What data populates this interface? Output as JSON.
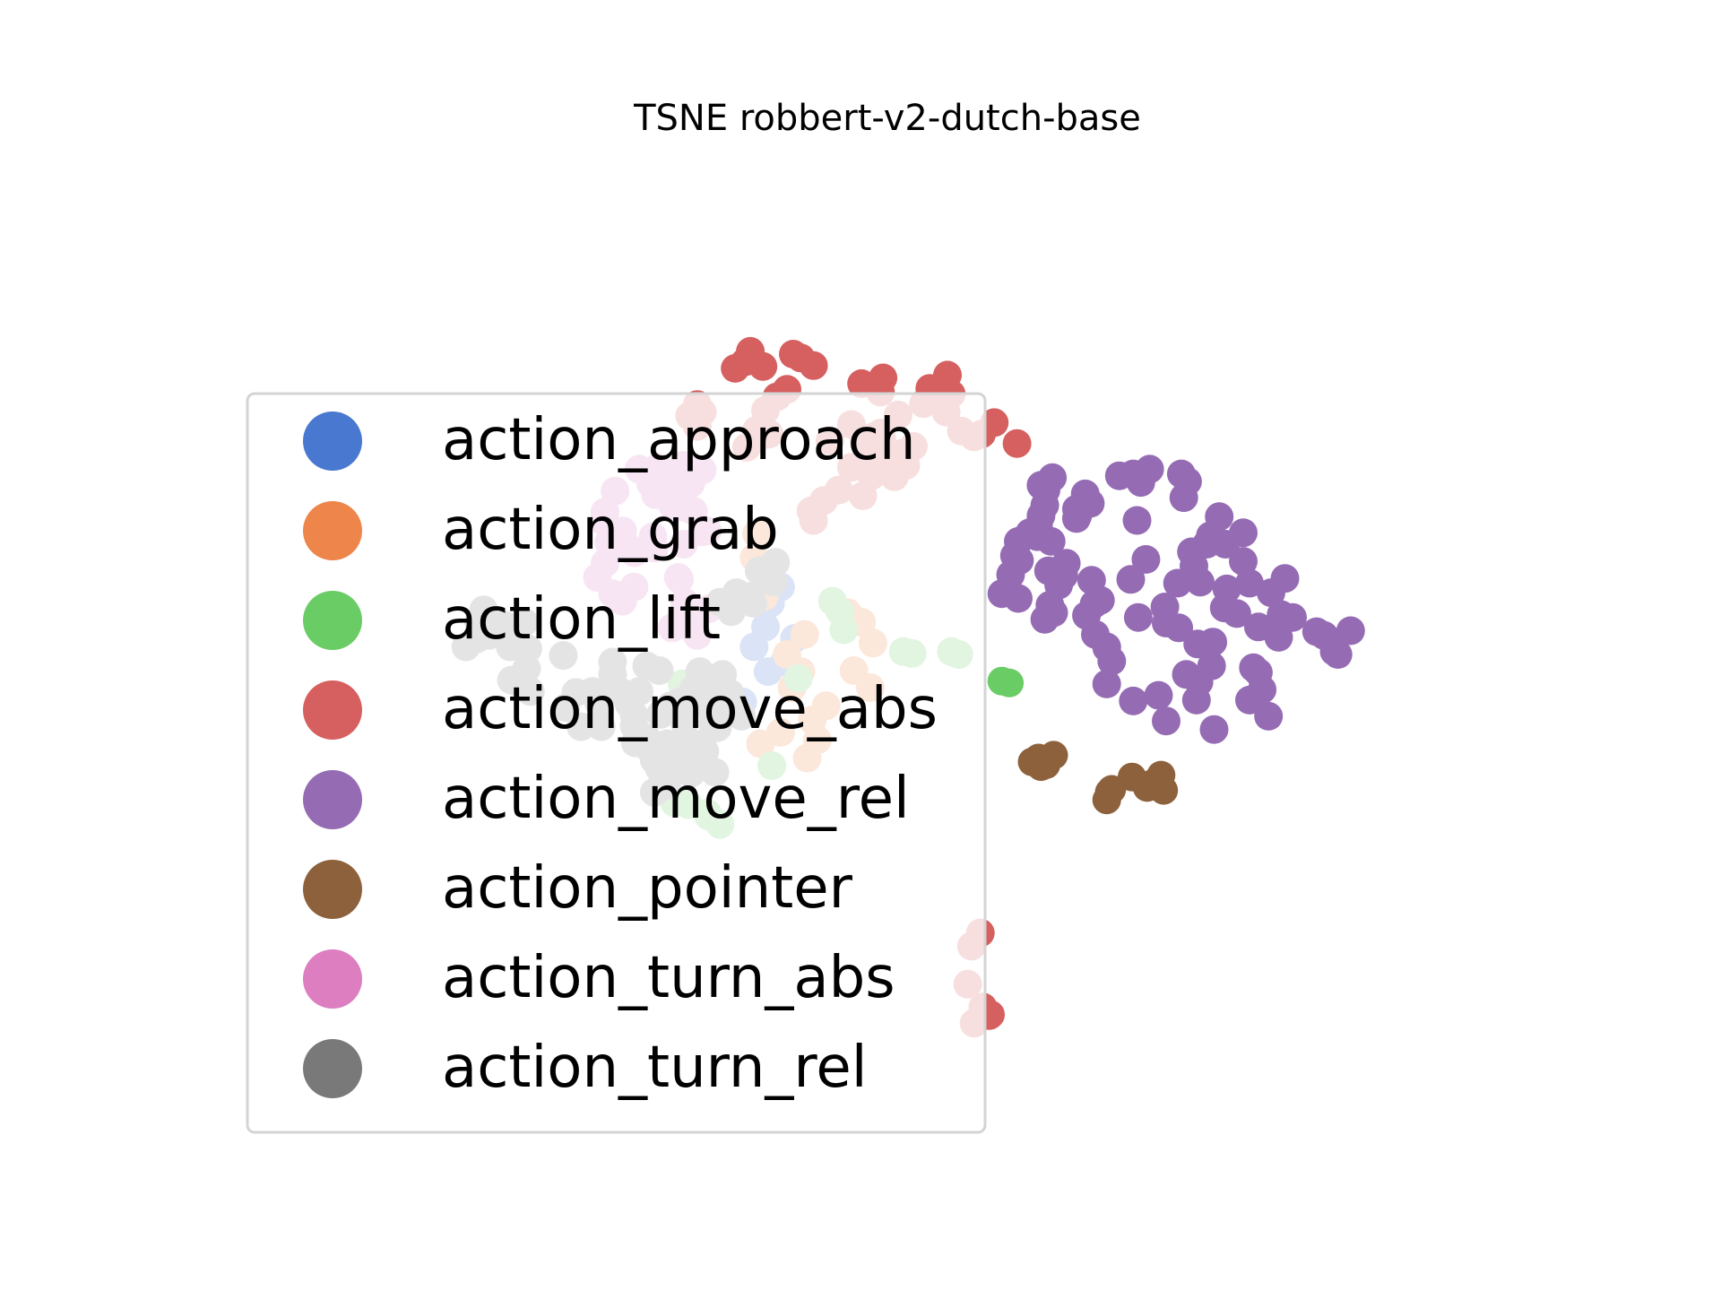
{
  "chart_data": {
    "type": "scatter",
    "title": "TSNE robbert-v2-dutch-base",
    "xlabel": "",
    "ylabel": "",
    "axes_visible": false,
    "grid": false,
    "legend_position": "center-left",
    "xlim": [
      0,
      1000
    ],
    "ylim": [
      0,
      1000
    ],
    "series": [
      {
        "name": "action_approach",
        "color": "#4878d0",
        "points": [
          [
            400,
            586
          ],
          [
            412,
            571
          ],
          [
            404,
            554
          ],
          [
            391,
            508
          ],
          [
            402,
            482
          ],
          [
            415,
            492
          ],
          [
            423,
            517
          ],
          [
            400,
            529
          ],
          [
            382,
            450
          ]
        ]
      },
      {
        "name": "action_grab",
        "color": "#ee854a",
        "points": [
          [
            417,
            500
          ],
          [
            428,
            482
          ],
          [
            421,
            465
          ],
          [
            448,
            446
          ],
          [
            437,
            431
          ],
          [
            412,
            418
          ],
          [
            396,
            406
          ],
          [
            431,
            521
          ],
          [
            399,
            561
          ],
          [
            393,
            627
          ],
          [
            391,
            602
          ],
          [
            441,
            410
          ],
          [
            433,
            391
          ],
          [
            465,
            544
          ],
          [
            476,
            534
          ],
          [
            485,
            512
          ],
          [
            470,
            483
          ],
          [
            483,
            465
          ],
          [
            467,
            533
          ]
        ]
      },
      {
        "name": "action_lift",
        "color": "#6acc64",
        "points": [
          [
            459,
            545
          ],
          [
            462,
            526
          ],
          [
            453,
            556
          ],
          [
            516,
            501
          ],
          [
            509,
            503
          ],
          [
            547,
            503
          ],
          [
            553,
            500
          ],
          [
            587,
            472
          ],
          [
            593,
            470
          ],
          [
            334,
            469
          ],
          [
            354,
            333
          ],
          [
            339,
            342
          ],
          [
            328,
            344
          ],
          [
            355,
            330
          ],
          [
            364,
            321
          ],
          [
            405,
            383
          ],
          [
            426,
            475
          ]
        ]
      },
      {
        "name": "action_move_abs",
        "color": "#d65f5f",
        "points": [
          [
            340,
            751
          ],
          [
            350,
            755
          ],
          [
            346,
            740
          ],
          [
            346,
            763
          ],
          [
            384,
            808
          ],
          [
            388,
            819
          ],
          [
            398,
            803
          ],
          [
            376,
            801
          ],
          [
            400,
            757
          ],
          [
            409,
            771
          ],
          [
            394,
            728
          ],
          [
            393,
            736
          ],
          [
            385,
            718
          ],
          [
            403,
            732
          ],
          [
            417,
            779
          ],
          [
            428,
            812
          ],
          [
            438,
            804
          ],
          [
            422,
            816
          ],
          [
            478,
            723
          ],
          [
            492,
            727
          ],
          [
            509,
            712
          ],
          [
            517,
            719
          ],
          [
            505,
            752
          ],
          [
            525,
            764
          ],
          [
            530,
            780
          ],
          [
            544,
            794
          ],
          [
            547,
            774
          ],
          [
            543,
            755
          ],
          [
            555,
            735
          ],
          [
            571,
            732
          ],
          [
            581,
            744
          ],
          [
            599,
            722
          ],
          [
            565,
            729
          ],
          [
            485,
            701
          ],
          [
            468,
            697
          ],
          [
            451,
            725
          ],
          [
            468,
            742
          ],
          [
            511,
            699
          ],
          [
            502,
            687
          ],
          [
            484,
            688
          ],
          [
            491,
            776
          ],
          [
            476,
            785
          ],
          [
            493,
            791
          ],
          [
            485,
            729
          ],
          [
            496,
            706
          ],
          [
            491,
            733
          ],
          [
            446,
            662
          ],
          [
            436,
            651
          ],
          [
            438,
            641
          ],
          [
            458,
            673
          ],
          [
            477,
            667
          ],
          [
            563,
            193
          ],
          [
            570,
            207
          ],
          [
            560,
            153
          ],
          [
            565,
            112
          ],
          [
            572,
            129
          ],
          [
            577,
            120
          ],
          [
            578,
            121
          ]
        ]
      },
      {
        "name": "action_move_rel",
        "color": "#956cb4",
        "points": [
          [
            657,
            659
          ],
          [
            646,
            653
          ],
          [
            647,
            646
          ],
          [
            646,
            643
          ],
          [
            653,
            669
          ],
          [
            627,
            686
          ],
          [
            618,
            678
          ],
          [
            622,
            673
          ],
          [
            621,
            657
          ],
          [
            626,
            619
          ],
          [
            615,
            624
          ],
          [
            616,
            635
          ],
          [
            632,
            573
          ],
          [
            638,
            596
          ],
          [
            624,
            588
          ],
          [
            636,
            583
          ],
          [
            625,
            552
          ],
          [
            628,
            544
          ],
          [
            621,
            537
          ],
          [
            600,
            619
          ],
          [
            597,
            604
          ],
          [
            594,
            584
          ],
          [
            587,
            564
          ],
          [
            600,
            559
          ],
          [
            601,
            599
          ],
          [
            609,
            628
          ],
          [
            618,
            646
          ],
          [
            658,
            578
          ],
          [
            660,
            553
          ],
          [
            654,
            541
          ],
          [
            689,
            579
          ],
          [
            701,
            600
          ],
          [
            694,
            641
          ],
          [
            680,
            688
          ],
          [
            691,
            690
          ],
          [
            697,
            681
          ],
          [
            704,
            695
          ],
          [
            729,
            690
          ],
          [
            734,
            682
          ],
          [
            731,
            665
          ],
          [
            737,
            608
          ],
          [
            739,
            593
          ],
          [
            749,
            616
          ],
          [
            752,
            625
          ],
          [
            759,
            645
          ],
          [
            764,
            616
          ],
          [
            778,
            628
          ],
          [
            778,
            598
          ],
          [
            765,
            569
          ],
          [
            763,
            549
          ],
          [
            773,
            543
          ],
          [
            754,
            513
          ],
          [
            742,
            511
          ],
          [
            753,
            488
          ],
          [
            743,
            471
          ],
          [
            755,
            421
          ],
          [
            783,
            452
          ],
          [
            786,
            486
          ],
          [
            790,
            529
          ],
          [
            800,
            565
          ],
          [
            811,
            580
          ],
          [
            817,
            539
          ],
          [
            836,
            524
          ],
          [
            842,
            520
          ],
          [
            850,
            503
          ],
          [
            853,
            500
          ],
          [
            863,
            525
          ],
          [
            808,
            542
          ],
          [
            806,
            518
          ],
          [
            790,
            481
          ],
          [
            793,
            463
          ],
          [
            798,
            435
          ],
          [
            717,
            430
          ],
          [
            711,
            457
          ],
          [
            691,
            451
          ],
          [
            670,
            469
          ],
          [
            674,
            493
          ],
          [
            665,
            557
          ],
          [
            670,
            507
          ],
          [
            741,
            452
          ],
          [
            733,
            479
          ],
          [
            744,
            576
          ],
          [
            716,
            550
          ],
          [
            717,
            533
          ],
          [
            727,
            528
          ],
          [
            695,
            539
          ],
          [
            661,
            521
          ],
          [
            670,
            508
          ],
          [
            726,
            575
          ],
          [
            783,
            575
          ]
        ]
      },
      {
        "name": "action_pointer",
        "color": "#8c613c",
        "points": [
          [
            616,
            391
          ],
          [
            622,
            384
          ],
          [
            611,
            387
          ],
          [
            618,
            382
          ],
          [
            628,
            394
          ],
          [
            706,
            364
          ],
          [
            713,
            373
          ],
          [
            702,
            360
          ],
          [
            690,
            371
          ],
          [
            715,
            357
          ],
          [
            674,
            358
          ],
          [
            670,
            347
          ],
          [
            672,
            355
          ]
        ]
      },
      {
        "name": "action_turn_abs",
        "color": "#dc7ec0",
        "points": [
          [
            300,
            695
          ],
          [
            309,
            680
          ],
          [
            313,
            668
          ],
          [
            320,
            681
          ],
          [
            315,
            697
          ],
          [
            335,
            699
          ],
          [
            346,
            694
          ],
          [
            341,
            680
          ],
          [
            331,
            671
          ],
          [
            327,
            655
          ],
          [
            281,
            672
          ],
          [
            273,
            650
          ],
          [
            272,
            640
          ],
          [
            276,
            618
          ],
          [
            287,
            630
          ],
          [
            296,
            607
          ],
          [
            290,
            614
          ],
          [
            273,
            596
          ],
          [
            267,
            581
          ],
          [
            279,
            564
          ],
          [
            287,
            556
          ],
          [
            296,
            571
          ],
          [
            312,
            612
          ],
          [
            311,
            624
          ],
          [
            331,
            581
          ],
          [
            336,
            555
          ],
          [
            332,
            579
          ],
          [
            343,
            547
          ],
          [
            339,
            530
          ],
          [
            346,
            520
          ],
          [
            326,
            528
          ],
          [
            355,
            548
          ],
          [
            335,
            535
          ],
          [
            354,
            630
          ],
          [
            350,
            629
          ],
          [
            350,
            694
          ],
          [
            343,
            651
          ],
          [
            335,
            655
          ],
          [
            335,
            616
          ]
        ]
      },
      {
        "name": "action_turn_rel",
        "color": "#797979",
        "points": [
          [
            163,
            508
          ],
          [
            171,
            516
          ],
          [
            173,
            534
          ],
          [
            177,
            547
          ],
          [
            181,
            520
          ],
          [
            193,
            531
          ],
          [
            209,
            534
          ],
          [
            212,
            506
          ],
          [
            198,
            508
          ],
          [
            211,
            485
          ],
          [
            199,
            473
          ],
          [
            204,
            471
          ],
          [
            214,
            461
          ],
          [
            240,
            499
          ],
          [
            279,
            479
          ],
          [
            279,
            492
          ],
          [
            306,
            488
          ],
          [
            316,
            483
          ],
          [
            285,
            461
          ],
          [
            292,
            448
          ],
          [
            296,
            436
          ],
          [
            296,
            425
          ],
          [
            306,
            412
          ],
          [
            317,
            437
          ],
          [
            336,
            428
          ],
          [
            332,
            450
          ],
          [
            325,
            446
          ],
          [
            343,
            463
          ],
          [
            348,
            466
          ],
          [
            352,
            447
          ],
          [
            372,
            459
          ],
          [
            364,
            465
          ],
          [
            368,
            440
          ],
          [
            381,
            435
          ],
          [
            300,
            461
          ],
          [
            263,
            461
          ],
          [
            250,
            460
          ],
          [
            242,
            444
          ],
          [
            254,
            424
          ],
          [
            270,
            424
          ],
          [
            268,
            449
          ],
          [
            330,
            387
          ],
          [
            341,
            375
          ],
          [
            322,
            362
          ],
          [
            358,
            427
          ],
          [
            332,
            383
          ],
          [
            347,
            387
          ],
          [
            334,
            406
          ],
          [
            350,
            406
          ],
          [
            332,
            383
          ],
          [
            297,
            407
          ],
          [
            308,
            401
          ],
          [
            312,
            389
          ],
          [
            316,
            380
          ],
          [
            312,
            355
          ],
          [
            366,
            479
          ],
          [
            348,
            482
          ],
          [
            362,
            423
          ],
          [
            360,
            376
          ],
          [
            352,
            398
          ],
          [
            322,
            406
          ],
          [
            395,
            588
          ],
          [
            373,
            545
          ],
          [
            364,
            555
          ],
          [
            388,
            561
          ],
          [
            390,
            554
          ],
          [
            377,
            565
          ],
          [
            406,
            576
          ],
          [
            408,
            597
          ]
        ]
      }
    ]
  }
}
